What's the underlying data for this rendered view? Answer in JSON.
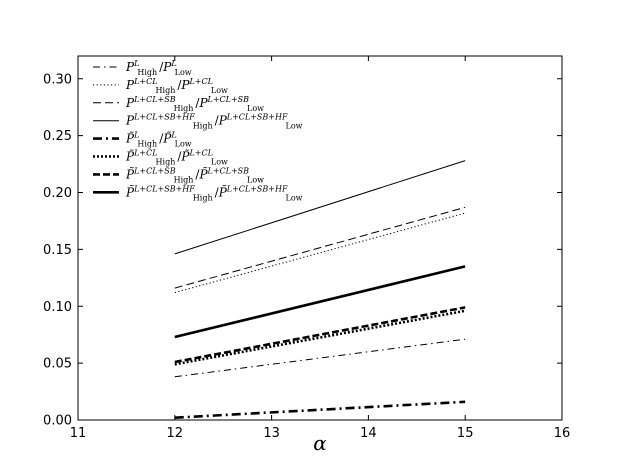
{
  "chart_data": {
    "type": "line",
    "xlabel": "α",
    "ylabel": "",
    "xlim": [
      11,
      16
    ],
    "ylim": [
      0.0,
      0.32
    ],
    "xticks": [
      "11",
      "12",
      "13",
      "14",
      "15",
      "16"
    ],
    "yticks": [
      "0.00",
      "0.05",
      "0.10",
      "0.15",
      "0.20",
      "0.25",
      "0.30"
    ],
    "grid": false,
    "legend_position": "top-left",
    "x": [
      12,
      15
    ],
    "series": [
      {
        "name": "P_High^L / P_Low^L",
        "values": [
          0.038,
          0.071
        ],
        "style": "dashdot",
        "weight": "thin"
      },
      {
        "name": "P_High^{L+CL} / P_Low^{L+CL}",
        "values": [
          0.112,
          0.182
        ],
        "style": "dotted",
        "weight": "thin"
      },
      {
        "name": "P_High^{L+CL+SB} / P_Low^{L+CL+SB}",
        "values": [
          0.116,
          0.187
        ],
        "style": "dashed",
        "weight": "thin"
      },
      {
        "name": "P_High^{L+CL+SB+HF} / P_Low^{L+CL+SB+HF}",
        "values": [
          0.146,
          0.228
        ],
        "style": "solid",
        "weight": "thin"
      },
      {
        "name": "P̃_High^L / P̃_Low^L",
        "values": [
          0.002,
          0.016
        ],
        "style": "dashdot",
        "weight": "thick"
      },
      {
        "name": "P̃_High^{L+CL} / P̃_Low^{L+CL}",
        "values": [
          0.049,
          0.096
        ],
        "style": "dotted",
        "weight": "thick"
      },
      {
        "name": "P̃_High^{L+CL+SB} / P̃_Low^{L+CL+SB}",
        "values": [
          0.051,
          0.099
        ],
        "style": "dashed",
        "weight": "thick"
      },
      {
        "name": "P̃_High^{L+CL+SB+HF} / P̃_Low^{L+CL+SB+HF}",
        "values": [
          0.073,
          0.135
        ],
        "style": "solid",
        "weight": "thick"
      }
    ],
    "legend_labels": [
      {
        "tilde": false,
        "sup": "L",
        "sub": "High",
        "sup2": "L",
        "sub2": "Low"
      },
      {
        "tilde": false,
        "sup": "L+CL",
        "sub": "High",
        "sup2": "L+CL",
        "sub2": "Low"
      },
      {
        "tilde": false,
        "sup": "L+CL+SB",
        "sub": "High",
        "sup2": "L+CL+SB",
        "sub2": "Low"
      },
      {
        "tilde": false,
        "sup": "L+CL+SB+HF",
        "sub": "High",
        "sup2": "L+CL+SB+HF",
        "sub2": "Low"
      },
      {
        "tilde": true,
        "sup": "L",
        "sub": "High",
        "sup2": "L",
        "sub2": "Low"
      },
      {
        "tilde": true,
        "sup": "L+CL",
        "sub": "High",
        "sup2": "L+CL",
        "sub2": "Low"
      },
      {
        "tilde": true,
        "sup": "L+CL+SB",
        "sub": "High",
        "sup2": "L+CL+SB",
        "sub2": "Low"
      },
      {
        "tilde": true,
        "sup": "L+CL+SB+HF",
        "sub": "High",
        "sup2": "L+CL+SB+HF",
        "sub2": "Low"
      }
    ]
  }
}
